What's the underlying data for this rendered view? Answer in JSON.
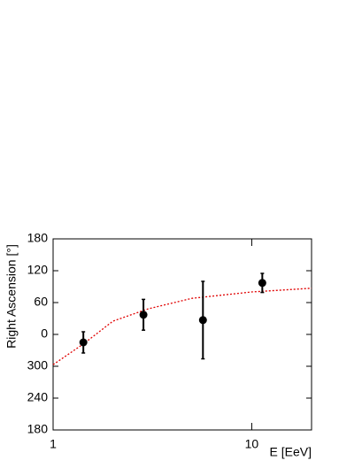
{
  "chart_data": {
    "type": "scatter",
    "xlabel": "E [EeV]",
    "ylabel": "Right Ascension [°]",
    "xscale": "log",
    "x": [
      1.42,
      2.85,
      5.68,
      11.3
    ],
    "values": [
      -15,
      37,
      27,
      97
    ],
    "errors": [
      20,
      29,
      73,
      18
    ],
    "color": "#000000",
    "fit": {
      "x": [
        1,
        1.42,
        2,
        3,
        5,
        10,
        20
      ],
      "values": [
        -57,
        -18,
        25,
        48,
        68,
        80,
        87
      ],
      "color": "#e00000"
    },
    "xlim": [
      1,
      20
    ],
    "xticks": [
      1,
      10
    ],
    "ylim": [
      -180,
      180
    ],
    "yticks": [
      180,
      120,
      60,
      0,
      {
        "value": -60,
        "label": "300"
      },
      {
        "value": -120,
        "label": "240"
      },
      {
        "value": -180,
        "label": "180"
      }
    ]
  }
}
